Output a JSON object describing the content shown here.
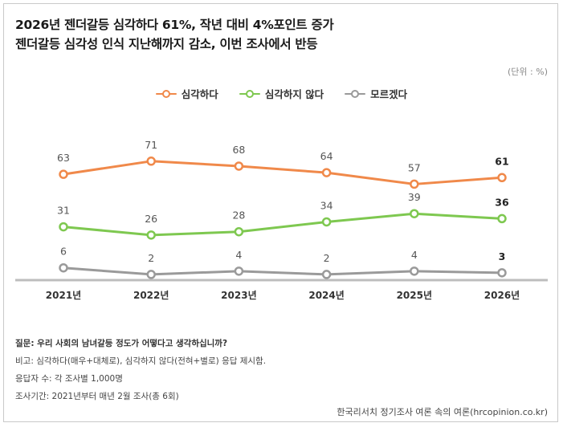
{
  "header": {
    "title_line1": "2026년 젠더갈등 심각하다 61%, 작년 대비 4%포인트 증가",
    "title_line2": "젠더갈등 심각성 인식 지난해까지 감소, 이번 조사에서 반등",
    "unit": "(단위 : %)"
  },
  "chart_data": {
    "type": "line",
    "categories": [
      "2021년",
      "2022년",
      "2023년",
      "2024년",
      "2025년",
      "2026년"
    ],
    "series": [
      {
        "name": "심각하다",
        "values": [
          63,
          71,
          68,
          64,
          57,
          61
        ],
        "color": "#f0894a"
      },
      {
        "name": "심각하지 않다",
        "values": [
          31,
          26,
          28,
          34,
          39,
          36
        ],
        "color": "#7ec850"
      },
      {
        "name": "모르겠다",
        "values": [
          6,
          2,
          4,
          2,
          4,
          3
        ],
        "color": "#9a9a9a"
      }
    ],
    "ylim": [
      0,
      80
    ],
    "xlabel": "",
    "ylabel": "",
    "legend_position": "top-center",
    "grid": false
  },
  "notes": {
    "question": "질문: 우리 사회의 남녀갈등 정도가 어떻다고 생각하십니까?",
    "remark": "비고: 심각하다(매우+대체로), 심각하지 않다(전혀+별로) 응답 제시함.",
    "respondents": "응답자 수: 각 조사별 1,000명",
    "period": "조사기간: 2021년부터 매년 2월 조사(총 6회)"
  },
  "source": "한국리서치 정기조사 여론 속의 여론(hrcopinion.co.kr)"
}
